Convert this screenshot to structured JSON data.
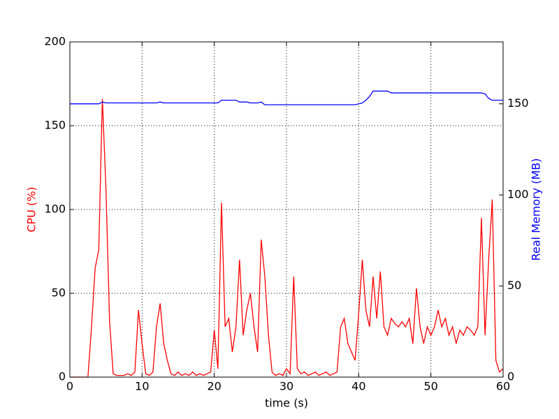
{
  "chart_data": {
    "type": "line",
    "xlabel": "time (s)",
    "ylabel": "CPU (%)",
    "y2label": "Real Memory (MB)",
    "ylabel_color": "#ff0000",
    "y2label_color": "#0000ff",
    "x": [
      0,
      0.5,
      1,
      1.5,
      2,
      2.5,
      3,
      3.5,
      4,
      4.5,
      5,
      5.5,
      6,
      6.5,
      7,
      7.5,
      8,
      8.5,
      9,
      9.5,
      10,
      10.5,
      11,
      11.5,
      12,
      12.5,
      13,
      13.5,
      14,
      14.5,
      15,
      15.5,
      16,
      16.5,
      17,
      17.5,
      18,
      18.5,
      19,
      19.5,
      20,
      20.5,
      21,
      21.5,
      22,
      22.5,
      23,
      23.5,
      24,
      24.5,
      25,
      25.5,
      26,
      26.5,
      27,
      27.5,
      28,
      28.5,
      29,
      29.5,
      30,
      30.5,
      31,
      31.5,
      32,
      32.5,
      33,
      33.5,
      34,
      34.5,
      35,
      35.5,
      36,
      36.5,
      37,
      37.5,
      38,
      38.5,
      39,
      39.5,
      40,
      40.5,
      41,
      41.5,
      42,
      42.5,
      43,
      43.5,
      44,
      44.5,
      45,
      45.5,
      46,
      46.5,
      47,
      47.5,
      48,
      48.5,
      49,
      49.5,
      50,
      50.5,
      51,
      51.5,
      52,
      52.5,
      53,
      53.5,
      54,
      54.5,
      55,
      55.5,
      56,
      56.5,
      57,
      57.5,
      58,
      58.5,
      59,
      59.5,
      60
    ],
    "series": [
      {
        "color": "#ff0000",
        "axis": "y",
        "values": [
          0,
          0,
          0,
          0,
          0,
          0,
          30,
          65,
          76,
          166,
          112,
          33,
          2,
          1,
          1,
          1,
          2,
          1,
          3,
          40,
          20,
          2,
          1,
          3,
          30,
          44,
          20,
          10,
          2,
          1,
          3,
          1,
          2,
          1,
          3,
          1,
          2,
          1,
          2,
          3,
          28,
          5,
          104,
          30,
          35,
          15,
          30,
          70,
          25,
          40,
          50,
          30,
          15,
          82,
          60,
          25,
          3,
          1,
          2,
          1,
          5,
          2,
          60,
          5,
          2,
          3,
          1,
          2,
          3,
          1,
          2,
          3,
          1,
          2,
          3,
          30,
          35,
          20,
          15,
          10,
          38,
          70,
          40,
          30,
          60,
          35,
          63,
          30,
          25,
          35,
          32,
          30,
          33,
          30,
          35,
          20,
          53,
          30,
          20,
          30,
          25,
          30,
          40,
          30,
          35,
          25,
          30,
          20,
          28,
          25,
          30,
          28,
          25,
          30,
          95,
          25,
          70,
          106,
          10,
          3,
          5
        ]
      },
      {
        "color": "#0000ff",
        "axis": "y2",
        "values": [
          150,
          150,
          150,
          150,
          150,
          150,
          150,
          150,
          150,
          151,
          150.5,
          150.5,
          150.5,
          150.5,
          150.5,
          150.5,
          150.5,
          150.5,
          150.5,
          150.5,
          150.5,
          150.5,
          150.5,
          150.5,
          150.5,
          151,
          150.5,
          150.5,
          150.5,
          150.5,
          150.5,
          150.5,
          150.5,
          150.5,
          150.5,
          150.5,
          150.5,
          150.5,
          150.5,
          150.5,
          150.5,
          150.5,
          152,
          152,
          152,
          152,
          152,
          151,
          151,
          151,
          150.5,
          150.5,
          150.5,
          151,
          149.5,
          149.5,
          149.5,
          149.5,
          149.5,
          149.5,
          149.5,
          149.5,
          149.5,
          149.5,
          149.5,
          149.5,
          149.5,
          149.5,
          149.5,
          149.5,
          149.5,
          149.5,
          149.5,
          149.5,
          149.5,
          149.5,
          149.5,
          149.5,
          149.5,
          149.5,
          150,
          150.5,
          152,
          154,
          157,
          157,
          157,
          157,
          157,
          156,
          156,
          156,
          156,
          156,
          156,
          156,
          156,
          156,
          156,
          156,
          156,
          156,
          156,
          156,
          156,
          156,
          156,
          156,
          156,
          156,
          156,
          156,
          156,
          156,
          156,
          155.5,
          153,
          152,
          152,
          152,
          152
        ]
      }
    ],
    "xlim": [
      0,
      60
    ],
    "xticks": [
      0,
      10,
      20,
      30,
      40,
      50,
      60
    ],
    "ylim": [
      0,
      200
    ],
    "yticks": [
      0,
      50,
      100,
      150,
      200
    ],
    "y2lim": [
      0,
      184
    ],
    "y2ticks": [
      0,
      50,
      100,
      150
    ],
    "grid": true
  }
}
